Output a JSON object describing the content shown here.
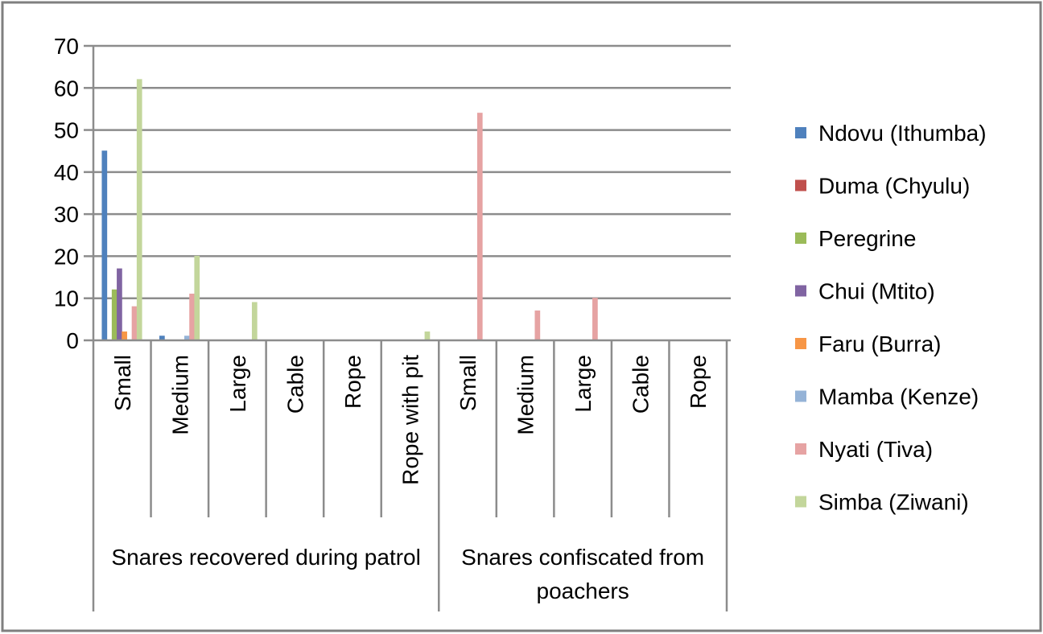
{
  "chart_data": {
    "type": "bar",
    "title": "",
    "xlabel": "",
    "ylabel": "",
    "ylim": [
      0,
      70
    ],
    "yticks": [
      0,
      10,
      20,
      30,
      40,
      50,
      60,
      70
    ],
    "grid": true,
    "legend_position": "right",
    "groups": [
      {
        "label": "Snares recovered during patrol",
        "categories": [
          "Small",
          "Medium",
          "Large",
          "Cable",
          "Rope",
          "Rope with pit"
        ]
      },
      {
        "label": "Snares confiscated from poachers",
        "categories": [
          "Small",
          "Medium",
          "Large",
          "Cable",
          "Rope"
        ]
      }
    ],
    "categories": [
      "Small",
      "Medium",
      "Large",
      "Cable",
      "Rope",
      "Rope with pit",
      "Small",
      "Medium",
      "Large",
      "Cable",
      "Rope"
    ],
    "series": [
      {
        "name": "Ndovu (Ithumba)",
        "color": "#4f81bd",
        "values": [
          45,
          1,
          0,
          0,
          0,
          0,
          0,
          0,
          0,
          0,
          0
        ]
      },
      {
        "name": "Duma (Chyulu)",
        "color": "#c0504d",
        "values": [
          0,
          0,
          0,
          0,
          0,
          0,
          0,
          0,
          0,
          0,
          0
        ]
      },
      {
        "name": "Peregrine",
        "color": "#9bbb59",
        "values": [
          12,
          0,
          0,
          0,
          0,
          0,
          0,
          0,
          0,
          0,
          0
        ]
      },
      {
        "name": "Chui (Mtito)",
        "color": "#8064a2",
        "values": [
          17,
          0,
          0,
          0,
          0,
          0,
          0,
          0,
          0,
          0,
          0
        ]
      },
      {
        "name": "Faru (Burra)",
        "color": "#f79646",
        "values": [
          2,
          0,
          0,
          0,
          0,
          0,
          0,
          0,
          0,
          0,
          0
        ]
      },
      {
        "name": "Mamba (Kenze)",
        "color": "#95b3d7",
        "values": [
          0,
          1,
          0,
          0,
          0,
          0,
          0,
          0,
          0,
          0,
          0
        ]
      },
      {
        "name": "Nyati (Tiva)",
        "color": "#e6a3a3",
        "values": [
          8,
          11,
          0,
          0,
          0,
          0,
          54,
          7,
          10,
          0,
          0
        ]
      },
      {
        "name": "Simba (Ziwani)",
        "color": "#c3d69b",
        "values": [
          62,
          20,
          9,
          0,
          0,
          2,
          0,
          0,
          0,
          0,
          0
        ]
      }
    ]
  }
}
